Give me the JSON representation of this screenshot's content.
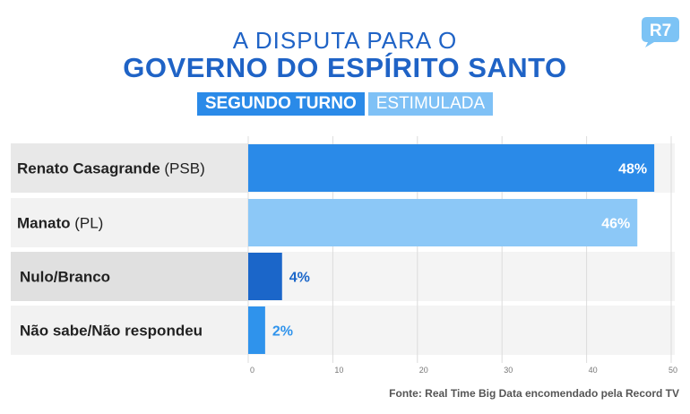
{
  "header": {
    "line1": "A DISPUTA PARA O",
    "line2": "GOVERNO DO ESPÍRITO SANTO",
    "badge1": "SEGUNDO TURNO",
    "badge2": "ESTIMULADA"
  },
  "logo": {
    "text": "R7",
    "color": "#7cc3f5"
  },
  "source": "Fonte: Real Time Big Data encomendado pela Record TV",
  "colors": {
    "title": "#1f63c6",
    "bar1": "#2a8ae8",
    "bar2": "#8cc8f7",
    "bar3": "#1b66c9",
    "bar4": "#2f93ec"
  },
  "chart_data": {
    "type": "bar",
    "orientation": "horizontal",
    "categories": [
      {
        "bold": "Renato Casagrande",
        "rest": " (PSB)"
      },
      {
        "bold": "Manato",
        "rest": " (PL)"
      },
      {
        "bold": "Nulo/Branco",
        "rest": ""
      },
      {
        "bold": "Não sabe/Não respondeu",
        "rest": ""
      }
    ],
    "values": [
      48,
      46,
      4,
      2
    ],
    "value_labels": [
      "48%",
      "46%",
      "4%",
      "2%"
    ],
    "xlim": [
      0,
      50
    ],
    "xticks": [
      0,
      10,
      20,
      30,
      40,
      50
    ],
    "grid": true
  }
}
